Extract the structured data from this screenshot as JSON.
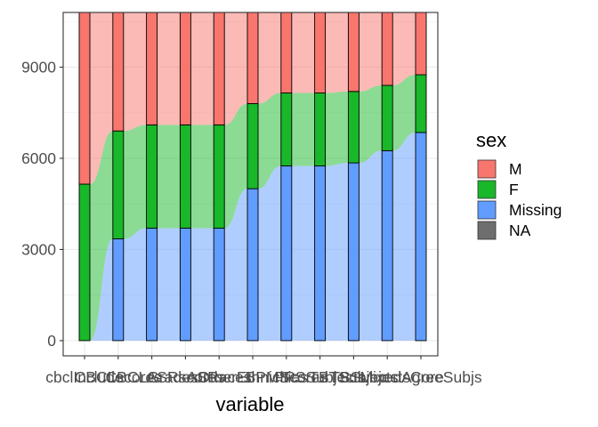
{
  "chart_data": {
    "type": "alluvial",
    "xlabel": "variable",
    "ylabel": "",
    "ylim": [
      -500,
      10800
    ],
    "yticks": [
      0,
      3000,
      6000,
      9000
    ],
    "grid": true,
    "legend_position": "right",
    "categories": [
      "cbclInclude",
      "CBCLscores",
      "CBCLGrades",
      "ASRscores",
      "ASRaces",
      "OtherEthnicities",
      "BPMScores",
      "PPSSubjects",
      "TBTSubjects",
      "TBSubjectsCore",
      "MixedAgreeSubjs"
    ],
    "legend": {
      "title": "sex",
      "entries": [
        {
          "label": "M",
          "color": "#F8766D"
        },
        {
          "label": "F",
          "color": "#19B72A"
        },
        {
          "label": "Missing",
          "color": "#619CFF"
        },
        {
          "label": "NA",
          "color": "#6E6E6E"
        }
      ]
    },
    "series": [
      {
        "name": "Missing",
        "color": "#619CFF",
        "values": [
          0,
          3350,
          3700,
          3700,
          3700,
          5000,
          5750,
          5750,
          5850,
          6250,
          6850
        ]
      },
      {
        "name": "F",
        "color": "#19B72A",
        "values": [
          5150,
          3550,
          3400,
          3400,
          3400,
          2800,
          2400,
          2400,
          2350,
          2150,
          1900
        ]
      },
      {
        "name": "M",
        "color": "#F8766D",
        "values": [
          5650,
          3900,
          3700,
          3700,
          3700,
          3000,
          2650,
          2650,
          2600,
          2400,
          2050
        ]
      }
    ]
  }
}
